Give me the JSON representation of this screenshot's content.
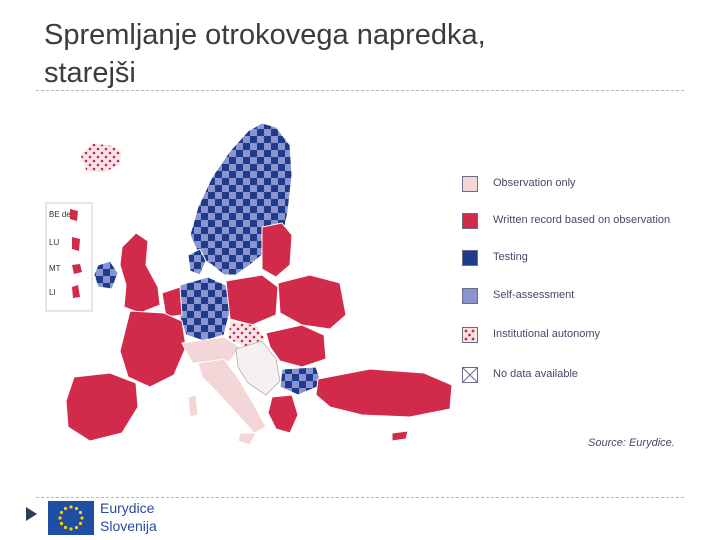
{
  "slide": {
    "title_line1": "Spremljanje otrokovega napredka,",
    "title_line2": "starejši"
  },
  "map": {
    "inset_labels": [
      "BE de",
      "LU",
      "MT",
      "LI"
    ]
  },
  "legend": {
    "items": [
      {
        "label": "Observation only",
        "pattern": "solid",
        "color": "#f3d6d8"
      },
      {
        "label": "Written record based on observation",
        "pattern": "solid",
        "color": "#d12a4a"
      },
      {
        "label": "Testing",
        "pattern": "solid",
        "color": "#1f3c8c"
      },
      {
        "label": "Self-assessment",
        "pattern": "solid",
        "color": "#8a95cf"
      },
      {
        "label": "Institutional autonomy",
        "pattern": "dots",
        "color": "#c8284a"
      },
      {
        "label": "No data available",
        "pattern": "cross",
        "color": "#ffffff"
      }
    ]
  },
  "source": "Source: Eurydice.",
  "footer": {
    "logo_line1": "Eurydice",
    "logo_line2": "Slovenija"
  },
  "colors": {
    "written_record": "#d12a4a",
    "observation_only": "#f3d6d8",
    "testing": "#1f3c8c",
    "self_assessment": "#8a95cf",
    "eu_blue": "#1f4ea3",
    "eu_star": "#ffd200"
  }
}
